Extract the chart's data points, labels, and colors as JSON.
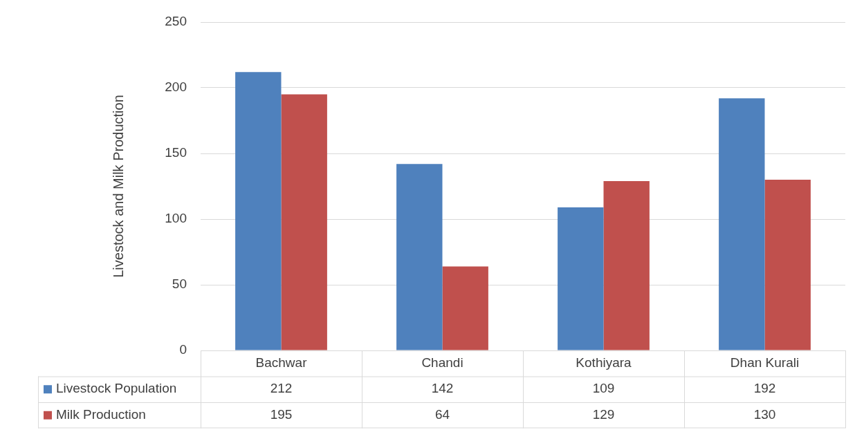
{
  "chart_data": {
    "type": "bar",
    "ylabel": "Livestock and Milk Production",
    "categories": [
      "Bachwar",
      "Chandi",
      "Kothiyara",
      "Dhan Kurali"
    ],
    "series": [
      {
        "name": "Livestock Population",
        "color": "#4f81bd",
        "values": [
          212,
          142,
          109,
          192
        ]
      },
      {
        "name": "Milk Production",
        "color": "#c0504d",
        "values": [
          195,
          64,
          129,
          130
        ]
      }
    ],
    "ylim": [
      0,
      250
    ],
    "yticks": [
      0,
      50,
      100,
      150,
      200,
      250
    ],
    "grid": "y",
    "legend": "bottom",
    "data_labels": true
  }
}
